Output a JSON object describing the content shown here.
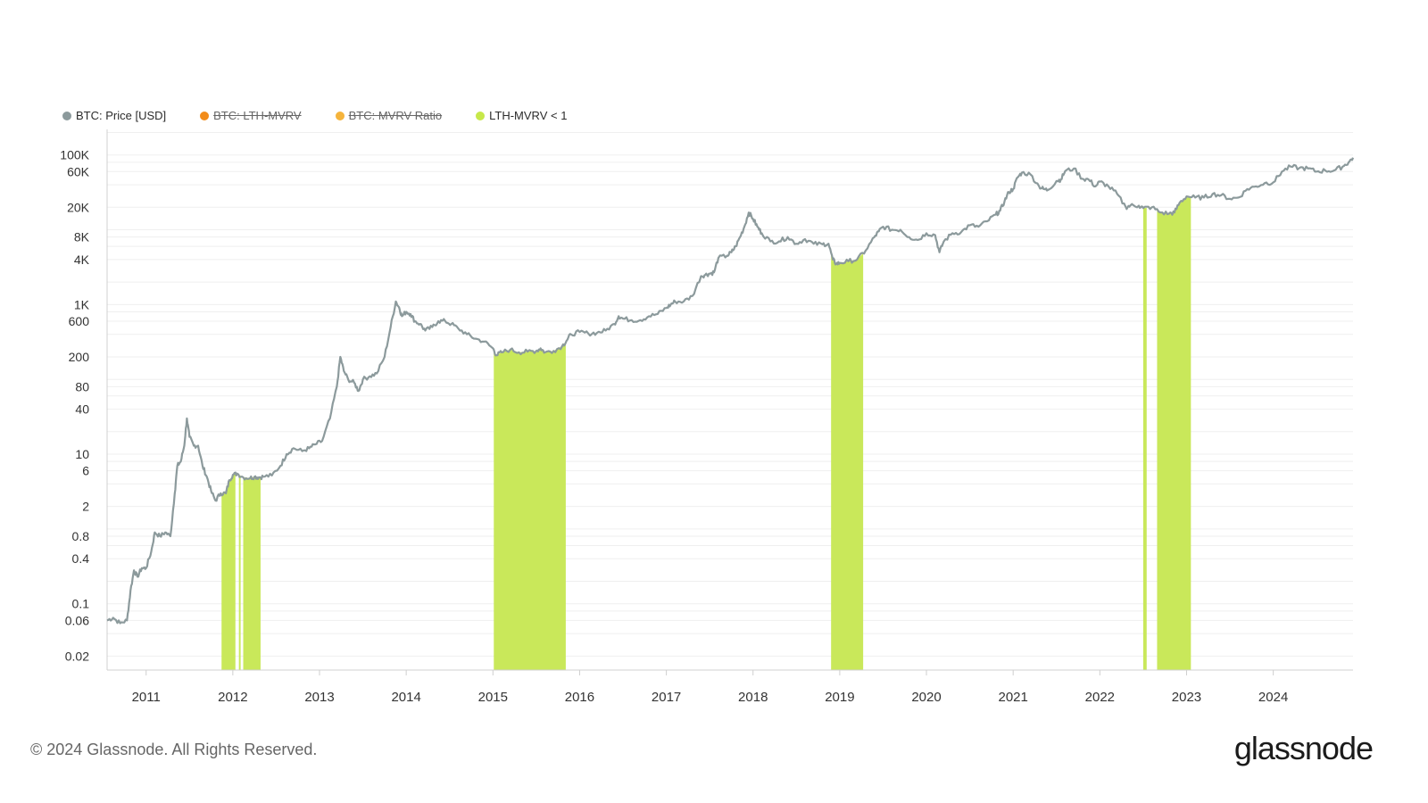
{
  "legend": [
    {
      "label": "BTC: Price [USD]",
      "color": "#8c9a9c",
      "enabled": true
    },
    {
      "label": "BTC: LTH-MVRV",
      "color": "#f28c1a",
      "enabled": false
    },
    {
      "label": "BTC: MVRV Ratio",
      "color": "#f5b43c",
      "enabled": false
    },
    {
      "label": "LTH-MVRV < 1",
      "color": "#c7e84a",
      "enabled": true
    }
  ],
  "footer": {
    "copyright": "© 2024 Glassnode. All Rights Reserved.",
    "logo": "glassnode"
  },
  "chart_data": {
    "type": "line",
    "y_scale": "log",
    "ylim": [
      0.013,
      220000
    ],
    "xlim": [
      2010.55,
      2024.92
    ],
    "y_ticks": [
      {
        "value": 100000,
        "label": "100K"
      },
      {
        "value": 60000,
        "label": "60K"
      },
      {
        "value": 20000,
        "label": "20K"
      },
      {
        "value": 8000,
        "label": "8K"
      },
      {
        "value": 4000,
        "label": "4K"
      },
      {
        "value": 1000,
        "label": "1K"
      },
      {
        "value": 600,
        "label": "600"
      },
      {
        "value": 200,
        "label": "200"
      },
      {
        "value": 80,
        "label": "80"
      },
      {
        "value": 40,
        "label": "40"
      },
      {
        "value": 10,
        "label": "10"
      },
      {
        "value": 6,
        "label": "6"
      },
      {
        "value": 2,
        "label": "2"
      },
      {
        "value": 0.8,
        "label": "0.8"
      },
      {
        "value": 0.4,
        "label": "0.4"
      },
      {
        "value": 0.1,
        "label": "0.1"
      },
      {
        "value": 0.06,
        "label": "0.06"
      },
      {
        "value": 0.02,
        "label": "0.02"
      }
    ],
    "x_ticks": [
      "2011",
      "2012",
      "2013",
      "2014",
      "2015",
      "2016",
      "2017",
      "2018",
      "2019",
      "2020",
      "2021",
      "2022",
      "2023",
      "2024"
    ],
    "series": [
      {
        "name": "BTC: Price [USD]",
        "color": "#8c9a9c",
        "x": [
          2010.55,
          2010.62,
          2010.7,
          2010.78,
          2010.82,
          2010.86,
          2010.9,
          2010.95,
          2011.0,
          2011.06,
          2011.1,
          2011.16,
          2011.22,
          2011.28,
          2011.33,
          2011.36,
          2011.4,
          2011.44,
          2011.47,
          2011.5,
          2011.55,
          2011.6,
          2011.65,
          2011.7,
          2011.75,
          2011.8,
          2011.86,
          2011.92,
          2011.96,
          2012.0,
          2012.05,
          2012.12,
          2012.2,
          2012.25,
          2012.3,
          2012.35,
          2012.45,
          2012.55,
          2012.62,
          2012.7,
          2012.8,
          2012.88,
          2012.95,
          2013.03,
          2013.12,
          2013.2,
          2013.24,
          2013.28,
          2013.33,
          2013.4,
          2013.45,
          2013.5,
          2013.58,
          2013.66,
          2013.75,
          2013.82,
          2013.88,
          2013.92,
          2013.95,
          2014.0,
          2014.05,
          2014.1,
          2014.16,
          2014.22,
          2014.3,
          2014.37,
          2014.45,
          2014.52,
          2014.6,
          2014.7,
          2014.8,
          2014.9,
          2015.0,
          2015.04,
          2015.1,
          2015.2,
          2015.3,
          2015.4,
          2015.5,
          2015.55,
          2015.6,
          2015.7,
          2015.8,
          2015.85,
          2015.9,
          2016.0,
          2016.1,
          2016.2,
          2016.3,
          2016.4,
          2016.45,
          2016.5,
          2016.6,
          2016.7,
          2016.8,
          2016.9,
          2017.0,
          2017.05,
          2017.1,
          2017.2,
          2017.3,
          2017.4,
          2017.45,
          2017.5,
          2017.55,
          2017.6,
          2017.7,
          2017.75,
          2017.8,
          2017.85,
          2017.9,
          2017.95,
          2018.0,
          2018.05,
          2018.1,
          2018.2,
          2018.3,
          2018.4,
          2018.5,
          2018.6,
          2018.7,
          2018.8,
          2018.87,
          2018.92,
          2018.96,
          2019.0,
          2019.1,
          2019.2,
          2019.3,
          2019.4,
          2019.45,
          2019.5,
          2019.6,
          2019.7,
          2019.8,
          2019.9,
          2020.0,
          2020.1,
          2020.15,
          2020.2,
          2020.3,
          2020.4,
          2020.5,
          2020.6,
          2020.7,
          2020.8,
          2020.85,
          2020.9,
          2020.95,
          2021.0,
          2021.05,
          2021.1,
          2021.2,
          2021.3,
          2021.35,
          2021.4,
          2021.5,
          2021.55,
          2021.6,
          2021.7,
          2021.8,
          2021.87,
          2021.95,
          2022.0,
          2022.1,
          2022.2,
          2022.3,
          2022.35,
          2022.45,
          2022.5,
          2022.6,
          2022.7,
          2022.8,
          2022.86,
          2022.92,
          2023.0,
          2023.1,
          2023.2,
          2023.3,
          2023.4,
          2023.5,
          2023.6,
          2023.7,
          2023.8,
          2023.9,
          2024.0,
          2024.1,
          2024.2,
          2024.3,
          2024.4,
          2024.5,
          2024.6,
          2024.7,
          2024.8,
          2024.87,
          2024.92
        ],
        "y": [
          0.06,
          0.065,
          0.055,
          0.06,
          0.15,
          0.28,
          0.23,
          0.3,
          0.3,
          0.5,
          0.9,
          0.8,
          0.9,
          0.8,
          3.0,
          7.0,
          8.0,
          13.0,
          30.0,
          17.0,
          13.0,
          13.0,
          7.0,
          5.0,
          3.2,
          2.4,
          3.0,
          3.0,
          4.5,
          5.3,
          5.5,
          4.9,
          4.8,
          5.0,
          4.9,
          5.0,
          5.2,
          7.0,
          10.0,
          12.0,
          11.0,
          12.0,
          13.5,
          15.0,
          30.0,
          80.0,
          200.0,
          130.0,
          100.0,
          90.0,
          70.0,
          100.0,
          110.0,
          120.0,
          200.0,
          500.0,
          1100.0,
          900.0,
          700.0,
          800.0,
          750.0,
          600.0,
          550.0,
          450.0,
          500.0,
          600.0,
          600.0,
          550.0,
          480.0,
          400.0,
          350.0,
          320.0,
          260.0,
          210.0,
          230.0,
          250.0,
          230.0,
          235.0,
          240.0,
          260.0,
          230.0,
          240.0,
          280.0,
          330.0,
          400.0,
          430.0,
          410.0,
          420.0,
          450.0,
          550.0,
          700.0,
          650.0,
          620.0,
          620.0,
          700.0,
          750.0,
          900.0,
          1000.0,
          1100.0,
          1100.0,
          1300.0,
          2400.0,
          2500.0,
          2600.0,
          2700.0,
          4200.0,
          4500.0,
          5000.0,
          6000.0,
          8000.0,
          11000.0,
          17000.0,
          14000.0,
          11000.0,
          9000.0,
          7000.0,
          7000.0,
          8000.0,
          6500.0,
          7500.0,
          6500.0,
          6400.0,
          6500.0,
          4000.0,
          3500.0,
          3600.0,
          3800.0,
          4000.0,
          5300.0,
          8000.0,
          9500.0,
          11000.0,
          10000.0,
          10000.0,
          8000.0,
          7300.0,
          9000.0,
          8500.0,
          5000.0,
          7000.0,
          9000.0,
          9300.0,
          11500.0,
          11000.0,
          13000.0,
          16000.0,
          18000.0,
          24000.0,
          32000.0,
          35000.0,
          50000.0,
          58000.0,
          55000.0,
          38000.0,
          35000.0,
          34000.0,
          45000.0,
          47000.0,
          61000.0,
          66000.0,
          48000.0,
          47000.0,
          38000.0,
          44000.0,
          38000.0,
          30000.0,
          20000.0,
          21000.0,
          21000.0,
          19500.0,
          20000.0,
          17000.0,
          16500.0,
          17000.0,
          23000.0,
          28000.0,
          27000.0,
          27000.0,
          30000.0,
          29000.0,
          26000.0,
          27000.0,
          35000.0,
          38000.0,
          42000.0,
          43000.0,
          60000.0,
          70000.0,
          67000.0,
          66000.0,
          60000.0,
          62000.0,
          62000.0,
          70000.0,
          80000.0,
          92000.0
        ]
      }
    ],
    "shaded_ranges_label": "LTH-MVRV < 1",
    "shaded_ranges": [
      {
        "start": 2011.87,
        "end": 2012.03
      },
      {
        "start": 2012.07,
        "end": 2012.09
      },
      {
        "start": 2012.12,
        "end": 2012.32
      },
      {
        "start": 2015.01,
        "end": 2015.84
      },
      {
        "start": 2018.9,
        "end": 2019.27
      },
      {
        "start": 2022.5,
        "end": 2022.54
      },
      {
        "start": 2022.66,
        "end": 2023.05
      }
    ]
  }
}
